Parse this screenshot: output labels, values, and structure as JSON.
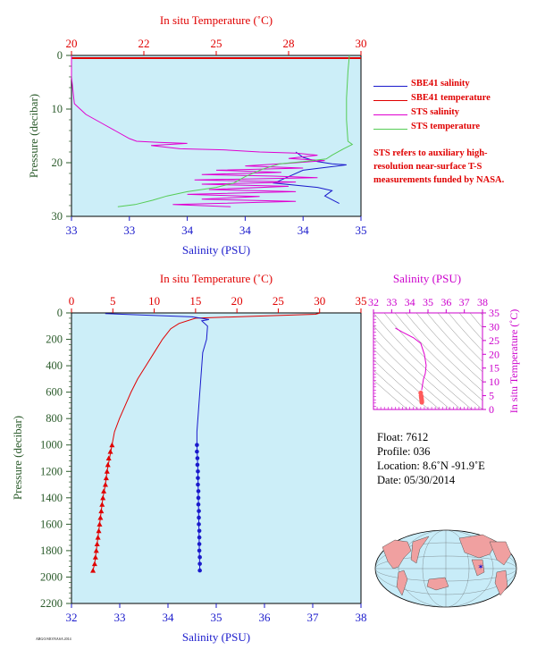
{
  "chart_data": [
    {
      "type": "line",
      "xlabel_top": "In situ Temperature (˚C)",
      "xlabel_bottom": "Salinity (PSU)",
      "ylabel": "Pressure (decibar)",
      "temp_ticks": [
        "20",
        "22",
        "25",
        "28",
        "30"
      ],
      "temp_range": [
        20,
        30
      ],
      "sal_ticks": [
        "33",
        "33",
        "34",
        "34",
        "34",
        "35"
      ],
      "sal_range": [
        33,
        35
      ],
      "y_ticks": [
        "0",
        "10",
        "20",
        "30"
      ],
      "ylim": [
        0,
        30
      ],
      "series": [
        {
          "name": "SBE41 salinity",
          "axis": "salinity",
          "color": "#1a1acc",
          "points": [
            [
              34.55,
              18
            ],
            [
              34.6,
              19
            ],
            [
              34.7,
              19.8
            ],
            [
              34.8,
              20.2
            ],
            [
              34.9,
              20.4
            ],
            [
              34.6,
              21.4
            ],
            [
              34.5,
              22.6
            ],
            [
              34.4,
              23.8
            ],
            [
              34.7,
              24.6
            ],
            [
              34.8,
              25.2
            ],
            [
              34.75,
              26.2
            ],
            [
              34.85,
              27.6
            ]
          ]
        },
        {
          "name": "SBE41 temperature",
          "axis": "temperature",
          "color": "#e00000",
          "points": [
            [
              20,
              0.5
            ],
            [
              30,
              0.5
            ]
          ]
        },
        {
          "name": "STS salinity",
          "axis": "salinity",
          "color": "#e000d0",
          "points": [
            [
              33,
              0
            ],
            [
              33,
              4
            ],
            [
              33.02,
              9
            ],
            [
              33.1,
              11
            ],
            [
              33.2,
              12.5
            ],
            [
              33.3,
              14
            ],
            [
              33.4,
              15.5
            ],
            [
              33.45,
              16
            ],
            [
              33.6,
              16.2
            ],
            [
              33.8,
              16.4
            ],
            [
              33.55,
              16.8
            ],
            [
              33.75,
              17.4
            ],
            [
              34.05,
              17.6
            ],
            [
              34.3,
              18
            ],
            [
              34.55,
              18.2
            ],
            [
              34.7,
              18.6
            ],
            [
              34.5,
              19.2
            ],
            [
              34.75,
              19.6
            ],
            [
              34.5,
              20.1
            ],
            [
              34.2,
              20.6
            ],
            [
              34.6,
              21
            ],
            [
              34.0,
              21.4
            ],
            [
              34.45,
              21.8
            ],
            [
              33.9,
              22.2
            ],
            [
              34.4,
              22.5
            ],
            [
              34.7,
              22.8
            ],
            [
              33.85,
              23.2
            ],
            [
              34.55,
              23.6
            ],
            [
              33.9,
              24
            ],
            [
              34.5,
              24.4
            ],
            [
              33.95,
              25
            ],
            [
              34.55,
              25.4
            ],
            [
              33.8,
              25.9
            ],
            [
              34.3,
              26.3
            ],
            [
              33.9,
              26.8
            ],
            [
              34.55,
              27.2
            ],
            [
              33.7,
              27.8
            ],
            [
              34.1,
              28.2
            ]
          ]
        },
        {
          "name": "STS temperature",
          "axis": "temperature",
          "color": "#55cc55",
          "points": [
            [
              29.6,
              0
            ],
            [
              29.55,
              3
            ],
            [
              29.5,
              8
            ],
            [
              29.5,
              12
            ],
            [
              29.55,
              16
            ],
            [
              29.7,
              16.6
            ],
            [
              29.4,
              17.4
            ],
            [
              29.0,
              18.6
            ],
            [
              28.8,
              19.3
            ],
            [
              28.0,
              19.8
            ],
            [
              27.2,
              20.2
            ],
            [
              26.6,
              21.2
            ],
            [
              26.0,
              22.6
            ],
            [
              25.6,
              23.8
            ],
            [
              25.0,
              24.6
            ],
            [
              24.0,
              25.4
            ],
            [
              23.3,
              26.2
            ],
            [
              22.8,
              27
            ],
            [
              22.2,
              27.8
            ],
            [
              21.6,
              28.2
            ]
          ]
        }
      ]
    },
    {
      "type": "line",
      "xlabel_top": "In situ Temperature (˚C)",
      "xlabel_bottom": "Salinity (PSU)",
      "ylabel": "Pressure (decibar)",
      "temp_ticks": [
        "0",
        "5",
        "10",
        "15",
        "20",
        "25",
        "30",
        "35"
      ],
      "temp_range": [
        0,
        35
      ],
      "sal_ticks": [
        "32",
        "33",
        "34",
        "35",
        "36",
        "37",
        "38"
      ],
      "sal_range": [
        32,
        38
      ],
      "y_ticks": [
        "0",
        "200",
        "400",
        "600",
        "800",
        "1000",
        "1200",
        "1400",
        "1600",
        "1800",
        "2000",
        "2200"
      ],
      "ylim": [
        0,
        2200
      ],
      "series": [
        {
          "name": "temperature",
          "axis": "temperature",
          "color": "#e00000",
          "points": [
            [
              30,
              2
            ],
            [
              29.5,
              10
            ],
            [
              22,
              25
            ],
            [
              15,
              40
            ],
            [
              13,
              80
            ],
            [
              12,
              120
            ],
            [
              11,
              200
            ],
            [
              10,
              300
            ],
            [
              9,
              400
            ],
            [
              8,
              500
            ],
            [
              7.2,
              600
            ],
            [
              6.5,
              700
            ],
            [
              5.8,
              800
            ],
            [
              5.2,
              900
            ],
            [
              4.9,
              1000
            ],
            [
              4.6,
              1100
            ],
            [
              4.3,
              1200
            ],
            [
              4.1,
              1300
            ],
            [
              3.8,
              1400
            ],
            [
              3.6,
              1500
            ],
            [
              3.4,
              1600
            ],
            [
              3.2,
              1700
            ],
            [
              3.0,
              1800
            ],
            [
              2.8,
              1900
            ],
            [
              2.6,
              1950
            ]
          ]
        },
        {
          "name": "temperature_triangles",
          "axis": "temperature",
          "color": "#e00000",
          "points": [
            [
              4.9,
              1000
            ],
            [
              4.7,
              1050
            ],
            [
              4.5,
              1100
            ],
            [
              4.4,
              1150
            ],
            [
              4.3,
              1200
            ],
            [
              4.2,
              1250
            ],
            [
              4.1,
              1300
            ],
            [
              3.9,
              1350
            ],
            [
              3.8,
              1400
            ],
            [
              3.7,
              1450
            ],
            [
              3.6,
              1500
            ],
            [
              3.5,
              1550
            ],
            [
              3.4,
              1600
            ],
            [
              3.3,
              1650
            ],
            [
              3.2,
              1700
            ],
            [
              3.1,
              1750
            ],
            [
              3.0,
              1800
            ],
            [
              2.9,
              1850
            ],
            [
              2.8,
              1900
            ],
            [
              2.6,
              1950
            ]
          ]
        },
        {
          "name": "salinity",
          "axis": "salinity",
          "color": "#1a1acc",
          "points": [
            [
              32.7,
              5
            ],
            [
              33.8,
              20
            ],
            [
              34.5,
              30
            ],
            [
              34.85,
              50
            ],
            [
              34.7,
              60
            ],
            [
              34.82,
              100
            ],
            [
              34.8,
              200
            ],
            [
              34.72,
              300
            ],
            [
              34.68,
              500
            ],
            [
              34.64,
              700
            ],
            [
              34.6,
              900
            ],
            [
              34.6,
              1000
            ],
            [
              34.62,
              1200
            ],
            [
              34.63,
              1400
            ],
            [
              34.64,
              1600
            ],
            [
              34.65,
              1800
            ],
            [
              34.66,
              1950
            ]
          ]
        },
        {
          "name": "salinity_dots",
          "axis": "salinity",
          "color": "#1a1acc",
          "points": [
            [
              34.6,
              1000
            ],
            [
              34.6,
              1050
            ],
            [
              34.61,
              1100
            ],
            [
              34.61,
              1150
            ],
            [
              34.62,
              1200
            ],
            [
              34.62,
              1250
            ],
            [
              34.62,
              1300
            ],
            [
              34.63,
              1350
            ],
            [
              34.63,
              1400
            ],
            [
              34.63,
              1450
            ],
            [
              34.64,
              1500
            ],
            [
              34.64,
              1550
            ],
            [
              34.64,
              1600
            ],
            [
              34.65,
              1650
            ],
            [
              34.65,
              1700
            ],
            [
              34.65,
              1750
            ],
            [
              34.65,
              1800
            ],
            [
              34.66,
              1850
            ],
            [
              34.66,
              1900
            ],
            [
              34.66,
              1950
            ]
          ]
        }
      ]
    },
    {
      "type": "scatter",
      "xlabel_top": "Salinity (PSU)",
      "ylabel": "In situ Temperature (˚C)",
      "sal_ticks": [
        "32",
        "33",
        "34",
        "35",
        "36",
        "37",
        "38"
      ],
      "sal_range": [
        32,
        38
      ],
      "temp_ticks": [
        "0",
        "5",
        "10",
        "15",
        "20",
        "25",
        "30",
        "35"
      ],
      "temp_range": [
        0,
        35
      ],
      "series": [
        {
          "name": "ts_profile",
          "color": "#e000d0",
          "points": [
            [
              33.2,
              29.5
            ],
            [
              33.6,
              28
            ],
            [
              34.2,
              26
            ],
            [
              34.6,
              24
            ],
            [
              34.8,
              20
            ],
            [
              34.9,
              16
            ],
            [
              34.85,
              13
            ],
            [
              34.75,
              11
            ],
            [
              34.7,
              9
            ],
            [
              34.65,
              7
            ]
          ]
        },
        {
          "name": "ts_deep",
          "color": "#ff5a5a",
          "points": [
            [
              34.6,
              6
            ],
            [
              34.62,
              5
            ],
            [
              34.63,
              4.5
            ],
            [
              34.64,
              4
            ],
            [
              34.65,
              3.5
            ],
            [
              34.66,
              3
            ],
            [
              34.66,
              2.6
            ]
          ]
        }
      ]
    }
  ],
  "legend": [
    {
      "label": "SBE41 salinity",
      "color": "#1a1acc"
    },
    {
      "label": "SBE41 temperature",
      "color": "#e00000"
    },
    {
      "label": "STS salinity",
      "color": "#e000d0"
    },
    {
      "label": "STS temperature",
      "color": "#55cc55"
    }
  ],
  "note": "STS refers to auxiliary high-resolution near-surface T-S measurements funded by NASA.",
  "info": {
    "float": "Float:  7612",
    "profile": "Profile:  036",
    "location": "Location:  8.6˚N  -91.9˚E",
    "date": "Date:  05/30/2014"
  },
  "map": {
    "marker_color": "#1a1acc",
    "ocean": "#c8ecf8",
    "land": "#f0a0a0"
  },
  "colors": {
    "plot_bg": "#cceef8",
    "temperature": "#e00000",
    "salinity_axis": "#1a1acc",
    "pressure_axis": "#2a5a2a",
    "ts_axis": "#cc00cc"
  },
  "footer": "ARGO/SIO/NASA 2014"
}
